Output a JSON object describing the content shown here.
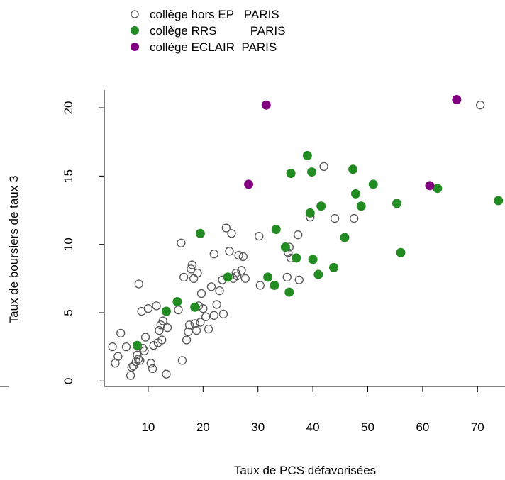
{
  "chart_data": {
    "type": "scatter",
    "title": "",
    "xlabel": "Taux de PCS défavorisées",
    "ylabel": "Taux de boursiers de taux 3",
    "xticks": [
      10,
      20,
      30,
      40,
      50,
      60,
      70
    ],
    "yticks": [
      0,
      5,
      10,
      15,
      20
    ],
    "xlim": [
      2,
      75
    ],
    "ylim": [
      -0.4,
      21.3
    ],
    "legend_position": "top-left",
    "series": [
      {
        "name": "collège hors EP   PARIS",
        "color": "#555555",
        "marker": "open-circle",
        "points": [
          [
            3.5,
            2.5
          ],
          [
            4.0,
            1.3
          ],
          [
            4.5,
            1.8
          ],
          [
            5.0,
            3.5
          ],
          [
            6.0,
            2.5
          ],
          [
            6.8,
            0.4
          ],
          [
            7.0,
            1.0
          ],
          [
            7.3,
            1.1
          ],
          [
            7.8,
            1.4
          ],
          [
            8.0,
            1.9
          ],
          [
            8.2,
            1.6
          ],
          [
            8.5,
            1.5
          ],
          [
            8.3,
            7.1
          ],
          [
            8.8,
            5.1
          ],
          [
            9.0,
            2.4
          ],
          [
            9.3,
            2.2
          ],
          [
            9.5,
            3.2
          ],
          [
            10.0,
            5.3
          ],
          [
            10.5,
            1.3
          ],
          [
            10.8,
            0.9
          ],
          [
            11.0,
            2.6
          ],
          [
            11.5,
            5.5
          ],
          [
            11.8,
            2.8
          ],
          [
            12.0,
            3.7
          ],
          [
            12.3,
            4.1
          ],
          [
            12.5,
            3.0
          ],
          [
            12.7,
            4.4
          ],
          [
            13.5,
            3.9
          ],
          [
            13.3,
            0.5
          ],
          [
            15.5,
            5.2
          ],
          [
            16.0,
            10.1
          ],
          [
            16.2,
            1.5
          ],
          [
            16.5,
            7.6
          ],
          [
            17.0,
            3.0
          ],
          [
            17.3,
            3.6
          ],
          [
            17.5,
            4.1
          ],
          [
            17.8,
            8.2
          ],
          [
            18.0,
            8.5
          ],
          [
            18.3,
            7.5
          ],
          [
            18.5,
            4.2
          ],
          [
            18.8,
            3.7
          ],
          [
            19.0,
            7.9
          ],
          [
            19.2,
            5.5
          ],
          [
            19.5,
            4.3
          ],
          [
            19.7,
            6.4
          ],
          [
            20.0,
            5.3
          ],
          [
            20.5,
            4.7
          ],
          [
            21.0,
            3.8
          ],
          [
            21.5,
            6.9
          ],
          [
            22.0,
            4.8
          ],
          [
            22.0,
            9.3
          ],
          [
            22.5,
            5.6
          ],
          [
            23.0,
            6.6
          ],
          [
            23.5,
            7.4
          ],
          [
            23.7,
            4.9
          ],
          [
            24.2,
            11.2
          ],
          [
            24.8,
            9.5
          ],
          [
            25.2,
            10.8
          ],
          [
            25.5,
            7.5
          ],
          [
            26.0,
            7.9
          ],
          [
            26.2,
            7.7
          ],
          [
            26.5,
            9.2
          ],
          [
            27.0,
            8.1
          ],
          [
            27.3,
            9.1
          ],
          [
            27.7,
            7.5
          ],
          [
            30.2,
            10.6
          ],
          [
            30.4,
            7.0
          ],
          [
            35.3,
            7.6
          ],
          [
            35.5,
            9.4
          ],
          [
            35.7,
            9.8
          ],
          [
            36.0,
            9.0
          ],
          [
            37.3,
            10.7
          ],
          [
            37.5,
            7.4
          ],
          [
            39.5,
            12.0
          ],
          [
            42.0,
            15.7
          ],
          [
            44.0,
            11.9
          ],
          [
            47.5,
            11.9
          ],
          [
            70.5,
            20.2
          ]
        ]
      },
      {
        "name": "collège RRS          PARIS",
        "color": "#228B22",
        "marker": "filled-circle",
        "points": [
          [
            8.0,
            2.6
          ],
          [
            13.3,
            5.1
          ],
          [
            15.3,
            5.8
          ],
          [
            18.5,
            5.4
          ],
          [
            19.5,
            10.8
          ],
          [
            24.5,
            7.6
          ],
          [
            31.8,
            7.6
          ],
          [
            33.0,
            7.0
          ],
          [
            33.3,
            11.1
          ],
          [
            35.0,
            9.8
          ],
          [
            35.7,
            6.5
          ],
          [
            36.0,
            15.2
          ],
          [
            37.0,
            9.0
          ],
          [
            39.0,
            16.5
          ],
          [
            39.5,
            12.3
          ],
          [
            39.8,
            15.3
          ],
          [
            40.0,
            8.9
          ],
          [
            41.0,
            7.8
          ],
          [
            41.5,
            12.8
          ],
          [
            43.8,
            8.3
          ],
          [
            45.8,
            10.5
          ],
          [
            47.3,
            15.5
          ],
          [
            47.8,
            13.7
          ],
          [
            48.8,
            12.8
          ],
          [
            51.0,
            14.4
          ],
          [
            55.3,
            13.0
          ],
          [
            56.0,
            9.4
          ],
          [
            62.7,
            14.1
          ],
          [
            73.8,
            13.2
          ]
        ]
      },
      {
        "name": "collège ECLAIR  PARIS",
        "color": "#800080",
        "marker": "filled-circle",
        "points": [
          [
            28.3,
            14.4
          ],
          [
            31.5,
            20.2
          ],
          [
            61.3,
            14.3
          ],
          [
            66.2,
            20.6
          ]
        ]
      }
    ]
  }
}
